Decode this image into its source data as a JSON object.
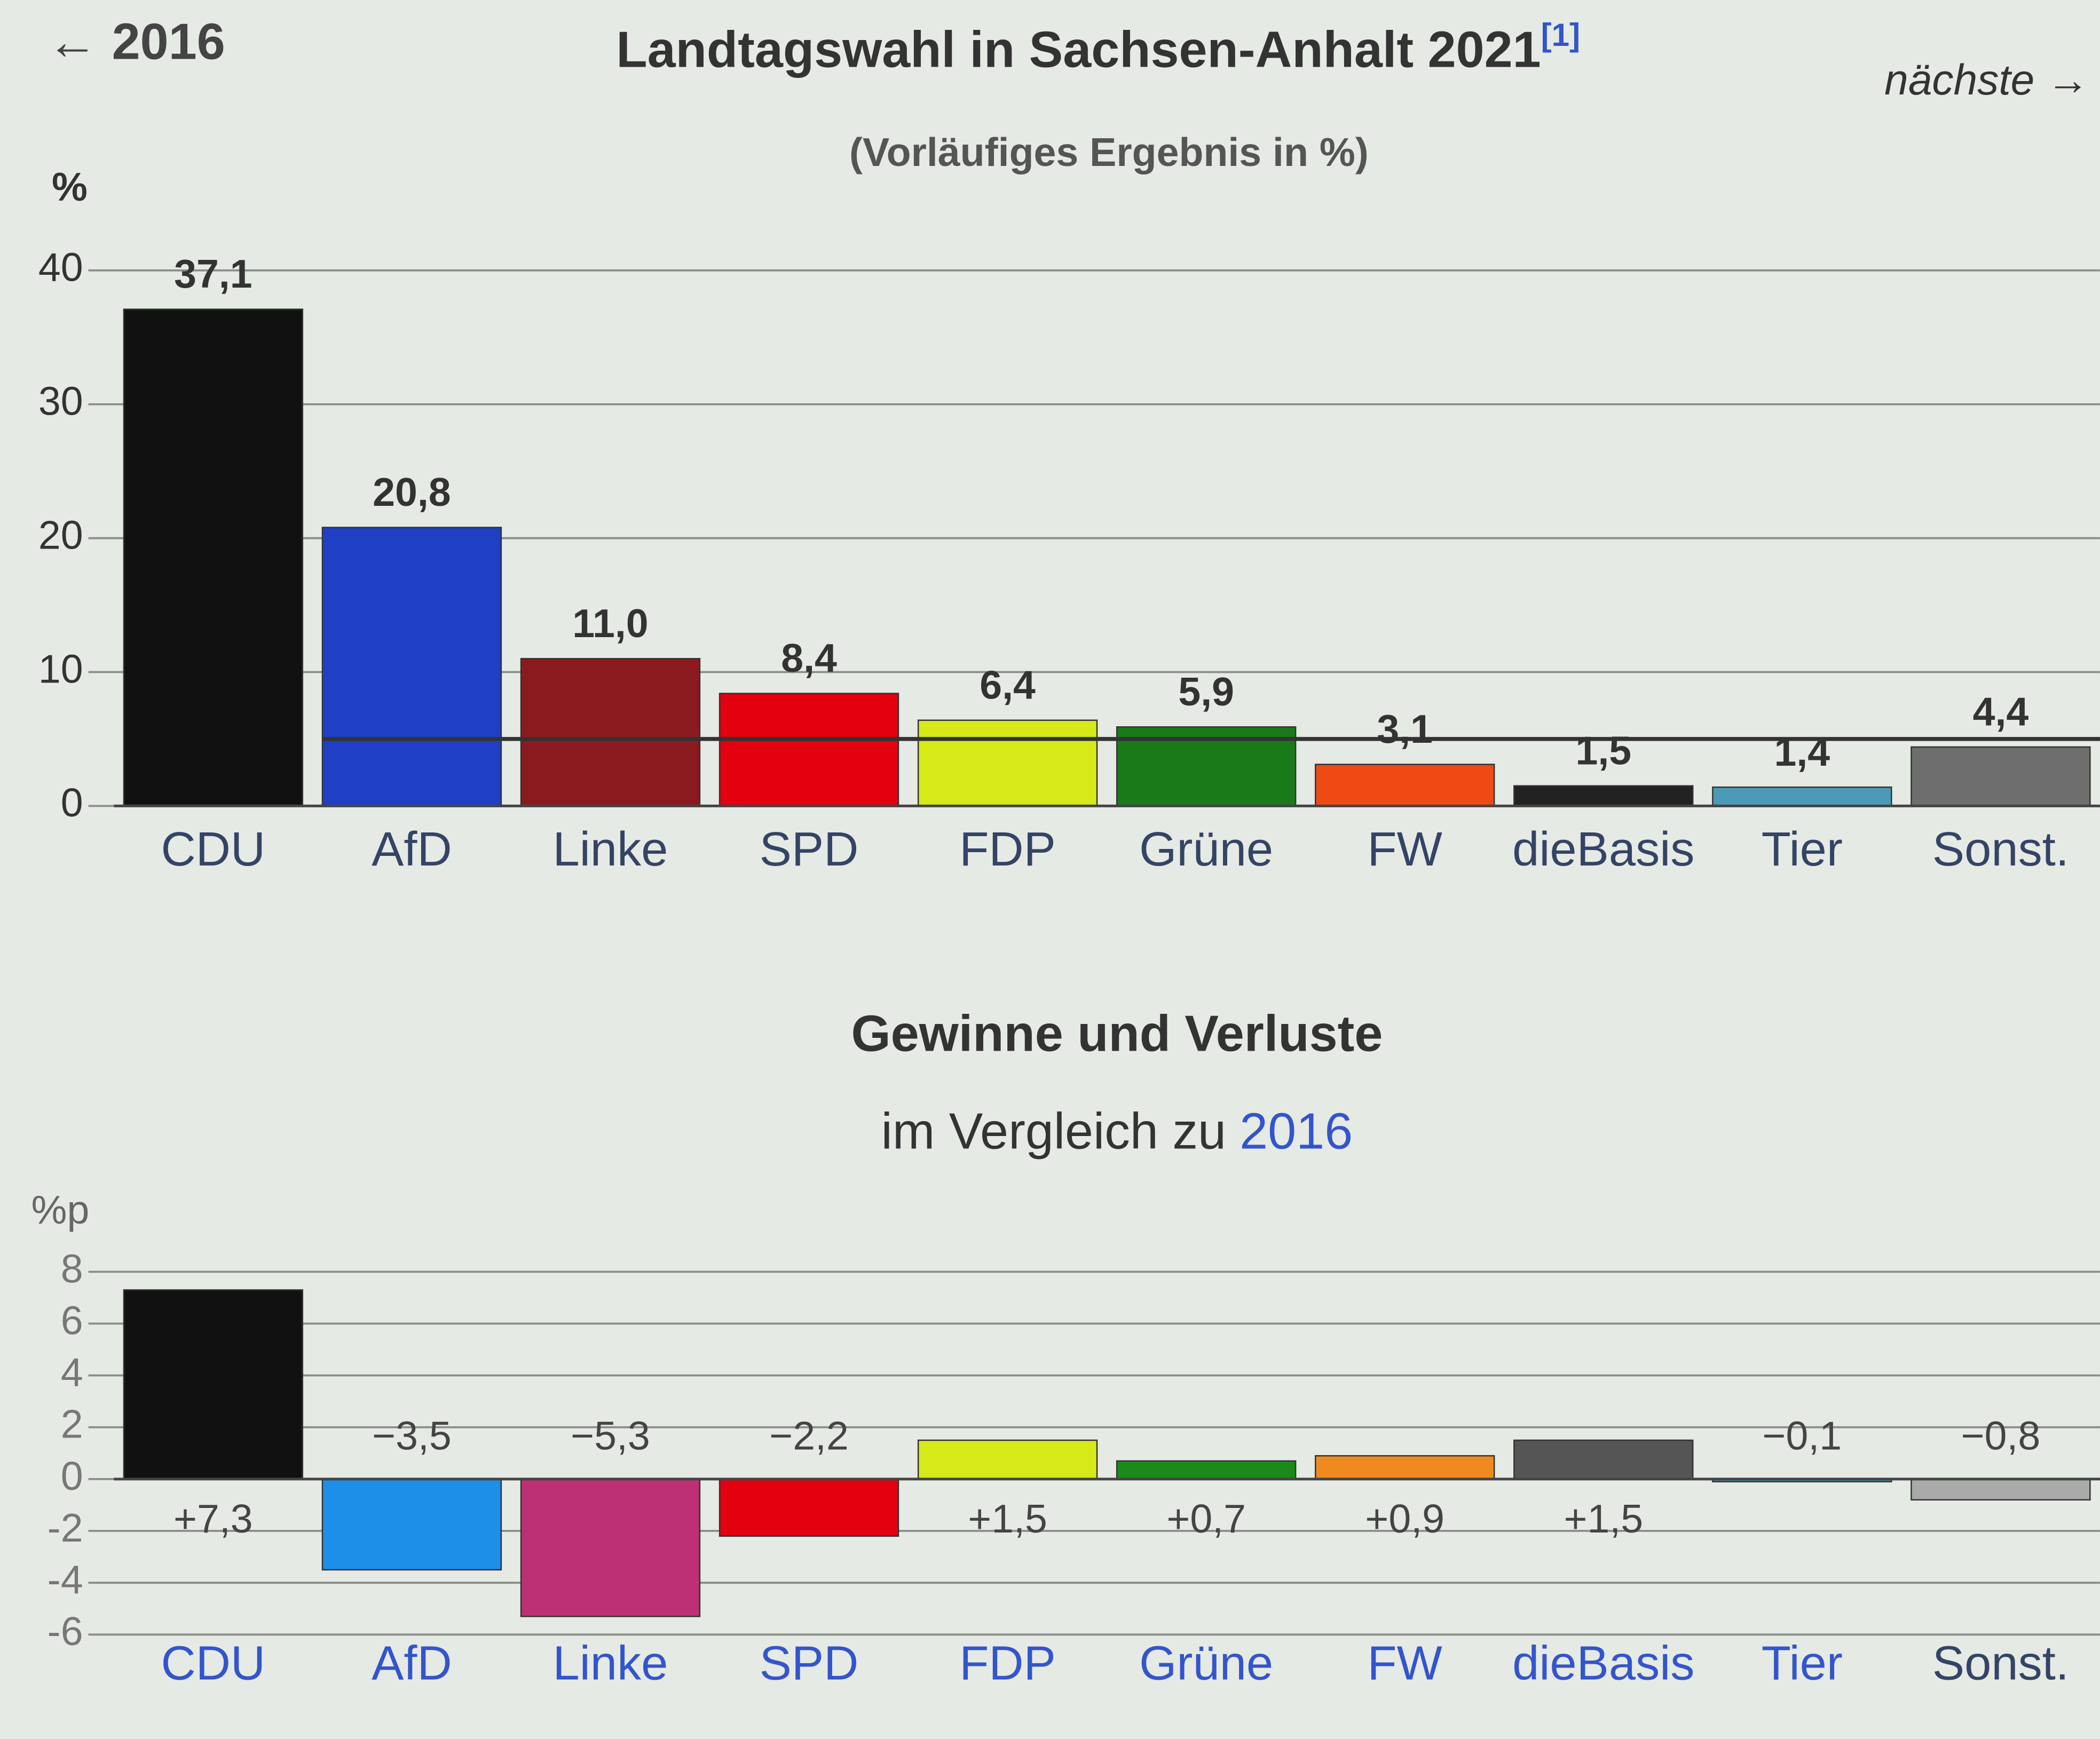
{
  "navigation": {
    "previous": "← 2016",
    "next": "nächste →"
  },
  "chart_data": [
    {
      "type": "bar",
      "title": "Landtagswahl in Sachsen-Anhalt 2021",
      "title_note": "[1]",
      "subtitle": "(Vorläufiges Ergebnis in %)",
      "y_label": "%",
      "categories": [
        "CDU",
        "AfD",
        "Linke",
        "SPD",
        "FDP",
        "Grüne",
        "FW",
        "dieBasis",
        "Tier",
        "Sonst."
      ],
      "values": [
        37.1,
        20.8,
        11.0,
        8.4,
        6.4,
        5.9,
        3.1,
        1.5,
        1.4,
        4.4
      ],
      "value_labels": [
        "37,1",
        "20,8",
        "11,0",
        "8,4",
        "6,4",
        "5,9",
        "3,1",
        "1,5",
        "1,4",
        "4,4"
      ],
      "colors": [
        "#111111",
        "#1f3fc4",
        "#8b1a1e",
        "#e3000f",
        "#d6ea1a",
        "#1a7a1a",
        "#f04a14",
        "#222222",
        "#4a9ab8",
        "#6e6e6e"
      ],
      "ylim": [
        0,
        40
      ],
      "yticks": [
        0,
        10,
        20,
        30,
        40
      ],
      "grid": true,
      "threshold": 5
    },
    {
      "type": "bar",
      "title": "Gewinne und Verluste",
      "subtitle": "im Vergleich zu",
      "subtitle_link": "2016",
      "y_label": "%p",
      "categories": [
        "CDU",
        "AfD",
        "Linke",
        "SPD",
        "FDP",
        "Grüne",
        "FW",
        "dieBasis",
        "Tier",
        "Sonst."
      ],
      "values": [
        7.3,
        -3.5,
        -5.3,
        -2.2,
        1.5,
        0.7,
        0.9,
        1.5,
        -0.1,
        -0.8
      ],
      "value_labels": [
        "+7,3",
        "−3,5",
        "−5,3",
        "−2,2",
        "+1,5",
        "+0,7",
        "+0,9",
        "+1,5",
        "−0,1",
        "−0,8"
      ],
      "colors": [
        "#111111",
        "#1e8fe8",
        "#be3075",
        "#e3000f",
        "#d6ea1a",
        "#1a8a1a",
        "#f08a20",
        "#555555",
        "#4a9ab8",
        "#aaaaaa"
      ],
      "ylim": [
        -6,
        8
      ],
      "yticks": [
        8,
        6,
        4,
        2,
        0,
        -2,
        -4,
        -6
      ],
      "grid": true
    }
  ]
}
